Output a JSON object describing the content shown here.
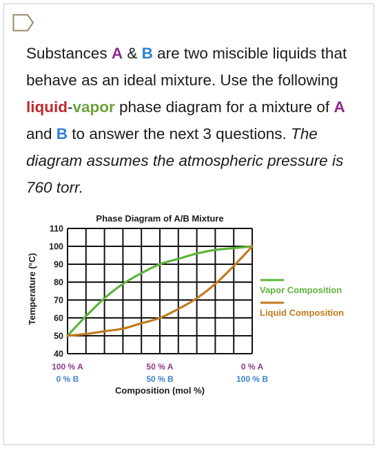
{
  "question": {
    "p1": "Substances ",
    "A": "A",
    "amp": " & ",
    "B": "B",
    "p2": " are two miscible liquids that behave as an ideal mixture. Use the following ",
    "liquid": "liquid",
    "dash": "-",
    "vapor": "vapor",
    "p3": " phase diagram for a mixture of ",
    "A2": "A",
    "and": " and ",
    "B2": "B",
    "p4": " to answer the next 3 questions. ",
    "italic": "The diagram assumes the atmospheric pressure is 760 torr."
  },
  "chart_data": {
    "type": "line",
    "title": "Phase Diagram of A/B Mixture",
    "xlabel": "Composition (mol %)",
    "ylabel": "Temperature (°C)",
    "xlim": [
      0,
      100
    ],
    "ylim": [
      40,
      110
    ],
    "yticks": [
      "110",
      "100",
      "90",
      "80",
      "70",
      "60",
      "50",
      "40"
    ],
    "xticks": [
      {
        "top": "100 % A",
        "bottom": "0 % B"
      },
      {
        "top": "50 % A",
        "bottom": "50 % B"
      },
      {
        "top": "0 % A",
        "bottom": "100 % B"
      }
    ],
    "grid": true,
    "legend": "right",
    "series": [
      {
        "name": "Vapor Composition",
        "color": "#5db33a",
        "x": [
          0,
          10,
          20,
          30,
          40,
          50,
          60,
          70,
          80,
          90,
          100
        ],
        "y": [
          50,
          61,
          71,
          79,
          85,
          90,
          93,
          96,
          98,
          99,
          100
        ]
      },
      {
        "name": "Liquid Composition",
        "color": "#c07a1e",
        "x": [
          0,
          10,
          20,
          30,
          40,
          50,
          60,
          70,
          80,
          90,
          100
        ],
        "y": [
          50,
          51,
          52.5,
          54,
          57,
          60,
          65,
          71,
          79,
          89,
          100
        ]
      }
    ]
  }
}
